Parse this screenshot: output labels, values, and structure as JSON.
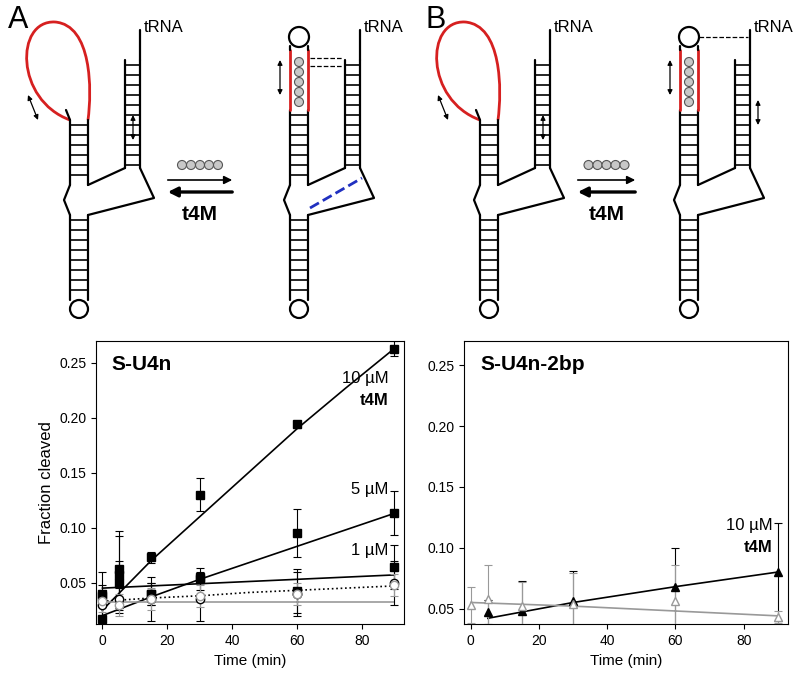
{
  "diagrams": [
    {
      "panel": "A",
      "labels": [
        "tRNA",
        "tRNA"
      ],
      "ligand": "t4M"
    },
    {
      "panel": "B",
      "labels": [
        "tRNA",
        "tRNA"
      ],
      "ligand": "t4M"
    }
  ],
  "chart_data": [
    {
      "type": "line",
      "title": "S-U4n",
      "y_label": "Fraction cleaved",
      "x_label": "Time (min)",
      "xlim": [
        -2,
        93
      ],
      "xticks": [
        0,
        20,
        40,
        60,
        80
      ],
      "ylim": [
        0.012,
        0.27
      ],
      "yticks": [
        0.05,
        {
          "value": 0.1,
          "label": "0.10"
        },
        0.15,
        {
          "value": 0.2,
          "label": "0.20"
        },
        0.25
      ],
      "x": [
        0,
        5,
        15,
        30,
        60,
        90
      ],
      "series": [
        {
          "annotation": [
            "10 µM",
            "t4M"
          ],
          "color": "#000000",
          "marker": "filled square",
          "line_style": "solid",
          "values": [
            0.017,
            0.062,
            0.073,
            0.13,
            0.194,
            0.263
          ],
          "errors": [
            0.02,
            0.035,
            0.005,
            0.015,
            0.003,
            0.007
          ],
          "fit_x": [
            0,
            15,
            30,
            45,
            60,
            75,
            90
          ],
          "fit": [
            0.025,
            0.07,
            0.11,
            0.15,
            0.19,
            0.227,
            0.263
          ]
        },
        {
          "annotation": [
            "5 µM"
          ],
          "color": "#000000",
          "marker": "filled square",
          "line_style": "solid",
          "values": [
            0.04,
            0.057,
            0.04,
            0.055,
            0.095,
            0.113
          ],
          "errors": [
            0.02,
            0.035,
            0.01,
            0.005,
            0.022,
            0.02
          ],
          "fit_x": [
            0,
            15,
            30,
            45,
            60,
            75,
            90
          ],
          "fit": [
            0.02,
            0.037,
            0.053,
            0.068,
            0.083,
            0.098,
            0.113
          ]
        },
        {
          "annotation": [
            "1 µM"
          ],
          "color": "#000000",
          "marker": "filled square",
          "line_style": "solid",
          "values": [
            0.038,
            0.05,
            0.04,
            0.053,
            0.042,
            0.064
          ],
          "errors": [
            0.01,
            0.02,
            0.01,
            0.01,
            0.02,
            0.02
          ],
          "fit_x": [
            0,
            15,
            30,
            45,
            60,
            75,
            90
          ],
          "fit": [
            0.045,
            0.047,
            0.049,
            0.051,
            0.053,
            0.055,
            0.057
          ]
        },
        {
          "color": "#000000",
          "marker": "open circle",
          "line_style": "dotted",
          "values": [
            0.03,
            0.035,
            0.035,
            0.035,
            0.04,
            0.05
          ],
          "errors": [
            0.01,
            0.01,
            0.02,
            0.02,
            0.02,
            0.02
          ],
          "fit_x": [
            0,
            15,
            30,
            45,
            60,
            75,
            90
          ],
          "fit": [
            0.033,
            0.036,
            0.038,
            0.041,
            0.043,
            0.045,
            0.047
          ]
        },
        {
          "color": "#999999",
          "marker": "open circle",
          "line_style": "solid",
          "values": [
            0.033,
            0.03,
            0.035,
            0.038,
            0.04,
            0.048
          ],
          "errors": [
            0.01,
            0.01,
            0.01,
            0.01,
            0.01,
            0.01
          ],
          "fit_x": [
            0,
            15,
            30,
            45,
            60,
            75,
            90
          ],
          "fit": [
            0.032,
            0.032,
            0.032,
            0.032,
            0.032,
            0.032,
            0.032
          ]
        }
      ]
    },
    {
      "type": "line",
      "title": "S-U4n-2bp",
      "x_label": "Time (min)",
      "xlim": [
        -2,
        93
      ],
      "xticks": [
        0,
        20,
        40,
        60,
        80
      ],
      "ylim": [
        0.037,
        0.27
      ],
      "yticks": [
        0.05,
        {
          "value": 0.1,
          "label": "0.10"
        },
        0.15,
        {
          "value": 0.2,
          "label": "0.20"
        },
        0.25
      ],
      "series": [
        {
          "annotation": [
            "10 µM",
            "t4M"
          ],
          "color": "#000000",
          "marker": "filled triangle",
          "line_style": "solid",
          "x": [
            5,
            15,
            30,
            60,
            90
          ],
          "values": [
            0.047,
            0.048,
            0.056,
            0.068,
            0.08
          ],
          "errors": [
            0.01,
            0.025,
            0.025,
            0.032,
            0.04
          ],
          "fit_x": [
            5,
            30,
            60,
            90
          ],
          "fit": [
            0.042,
            0.055,
            0.068,
            0.08
          ]
        },
        {
          "color": "#999999",
          "marker": "open triangle",
          "line_style": "solid",
          "x": [
            0,
            5,
            15,
            30,
            60,
            90
          ],
          "values": [
            0.053,
            0.058,
            0.052,
            0.054,
            0.056,
            0.043
          ],
          "errors": [
            0.015,
            0.028,
            0.02,
            0.025,
            0.03,
            0.005
          ],
          "fit_x": [
            0,
            30,
            60,
            90
          ],
          "fit": [
            0.055,
            0.052,
            0.048,
            0.044
          ]
        }
      ]
    }
  ]
}
